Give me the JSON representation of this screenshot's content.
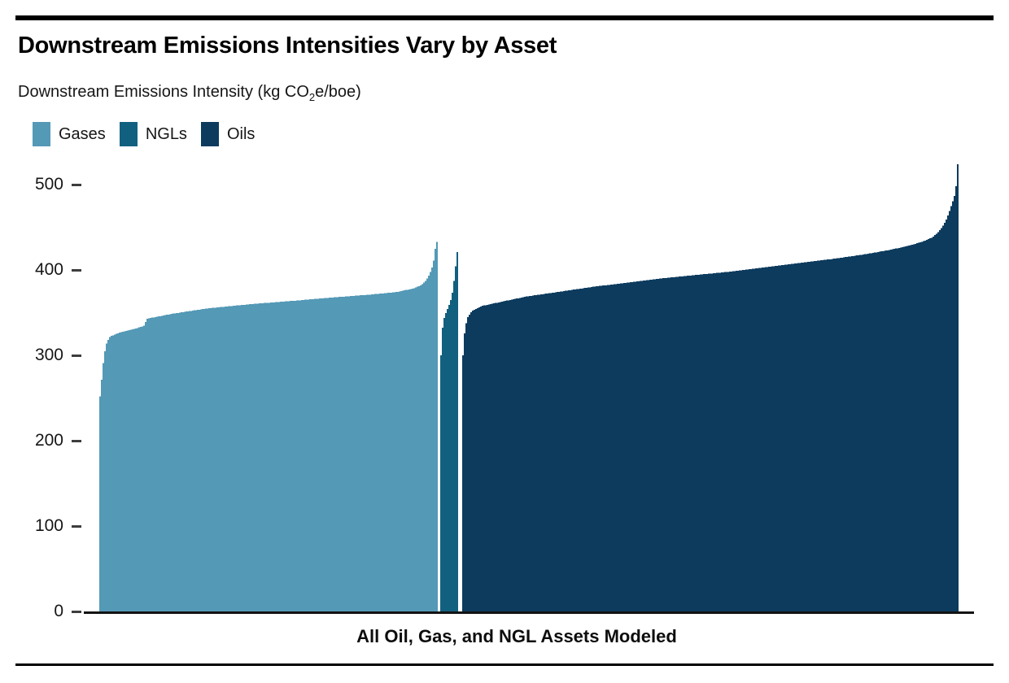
{
  "header": {
    "title": "Downstream Emissions Intensities Vary by Asset",
    "subtitle_prefix": "Downstream Emissions Intensity (kg CO",
    "subtitle_sub": "2",
    "subtitle_suffix": "e/boe)"
  },
  "legend": [
    {
      "label": "Gases",
      "color": "#5499B6"
    },
    {
      "label": "NGLs",
      "color": "#12607F"
    },
    {
      "label": "Oils",
      "color": "#0C3B5E"
    }
  ],
  "chart_data": {
    "type": "bar",
    "title": "Downstream Emissions Intensities Vary by Asset",
    "ylabel": "Downstream Emissions Intensity (kg CO2e/boe)",
    "xlabel": "All Oil, Gas, and NGL Assets Modeled",
    "ylim": [
      0,
      525
    ],
    "yticks": [
      0,
      100,
      200,
      300,
      400,
      500
    ],
    "grid": false,
    "legend_position": "top-left",
    "description": "Hundreds of thin vertical bars (one per asset), sorted ascending within each fuel group; values are the distribution envelope read from the axis.",
    "series": [
      {
        "name": "Gases",
        "color": "#5499B6",
        "min": 252,
        "max": 433,
        "envelope": [
          [
            0.0,
            252
          ],
          [
            0.005,
            272
          ],
          [
            0.012,
            300
          ],
          [
            0.02,
            315
          ],
          [
            0.03,
            322
          ],
          [
            0.06,
            327
          ],
          [
            0.1,
            331
          ],
          [
            0.13,
            334
          ],
          [
            0.14,
            343
          ],
          [
            0.22,
            349
          ],
          [
            0.32,
            355
          ],
          [
            0.45,
            360
          ],
          [
            0.58,
            364
          ],
          [
            0.7,
            368
          ],
          [
            0.8,
            371
          ],
          [
            0.88,
            374
          ],
          [
            0.93,
            378
          ],
          [
            0.955,
            382
          ],
          [
            0.968,
            387
          ],
          [
            0.978,
            393
          ],
          [
            0.986,
            400
          ],
          [
            0.992,
            409
          ],
          [
            0.996,
            419
          ],
          [
            1.0,
            433
          ]
        ]
      },
      {
        "name": "NGLs",
        "color": "#12607F",
        "min": 300,
        "max": 421,
        "envelope": [
          [
            0.0,
            300
          ],
          [
            0.09,
            331
          ],
          [
            0.2,
            344
          ],
          [
            0.35,
            352
          ],
          [
            0.5,
            359
          ],
          [
            0.62,
            366
          ],
          [
            0.74,
            377
          ],
          [
            0.84,
            394
          ],
          [
            0.92,
            408
          ],
          [
            1.0,
            421
          ]
        ]
      },
      {
        "name": "Oils",
        "color": "#0C3B5E",
        "min": 300,
        "max": 524,
        "envelope": [
          [
            0.0,
            300
          ],
          [
            0.004,
            331
          ],
          [
            0.009,
            344
          ],
          [
            0.018,
            352
          ],
          [
            0.04,
            358
          ],
          [
            0.08,
            363
          ],
          [
            0.13,
            369
          ],
          [
            0.19,
            374
          ],
          [
            0.26,
            380
          ],
          [
            0.33,
            385
          ],
          [
            0.4,
            390
          ],
          [
            0.47,
            394
          ],
          [
            0.54,
            398
          ],
          [
            0.61,
            403
          ],
          [
            0.68,
            408
          ],
          [
            0.75,
            413
          ],
          [
            0.81,
            418
          ],
          [
            0.86,
            423
          ],
          [
            0.9,
            428
          ],
          [
            0.93,
            433
          ],
          [
            0.95,
            438
          ],
          [
            0.962,
            444
          ],
          [
            0.97,
            450
          ],
          [
            0.977,
            457
          ],
          [
            0.982,
            464
          ],
          [
            0.987,
            472
          ],
          [
            0.99,
            478
          ],
          [
            0.994,
            484
          ],
          [
            0.9965,
            490
          ],
          [
            0.9983,
            497
          ],
          [
            0.9993,
            514
          ],
          [
            1.0,
            524
          ]
        ]
      }
    ]
  }
}
